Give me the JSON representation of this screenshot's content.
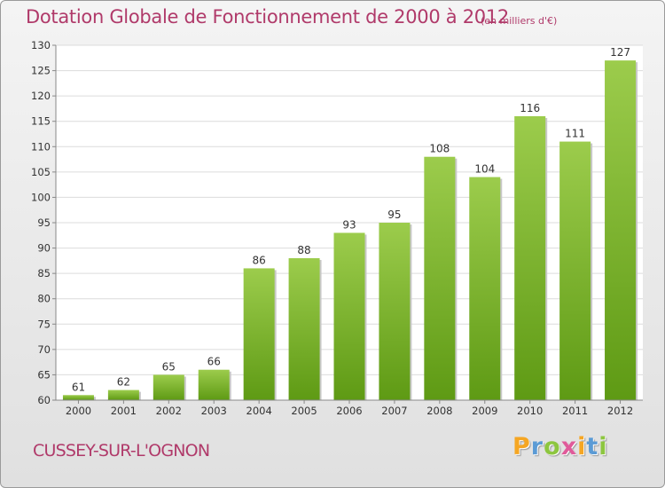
{
  "header": {
    "title": "Dotation Globale de Fonctionnement de 2000 à 2012",
    "unit": "(en milliers d'€)"
  },
  "footer": {
    "commune": "CUSSEY-SUR-L'OGNON",
    "logo_letters": [
      "P",
      "r",
      "o",
      "x",
      "i",
      "t",
      "i"
    ],
    "logo_colors": [
      "#f5a623",
      "#5b9bd5",
      "#8dc63f",
      "#e05a9a",
      "#f5a623",
      "#5b9bd5",
      "#8dc63f"
    ]
  },
  "chart_data": {
    "type": "bar",
    "categories": [
      "2000",
      "2001",
      "2002",
      "2003",
      "2004",
      "2005",
      "2006",
      "2007",
      "2008",
      "2009",
      "2010",
      "2011",
      "2012"
    ],
    "values": [
      61,
      62,
      65,
      66,
      86,
      88,
      93,
      95,
      108,
      104,
      116,
      111,
      127
    ],
    "ylim": [
      60,
      130
    ],
    "yticks": [
      60,
      65,
      70,
      75,
      80,
      85,
      90,
      95,
      100,
      105,
      110,
      115,
      120,
      125,
      130
    ],
    "grid": true,
    "bar_color_top": "#9ccc4c",
    "bar_color_bottom": "#5e9a14"
  }
}
